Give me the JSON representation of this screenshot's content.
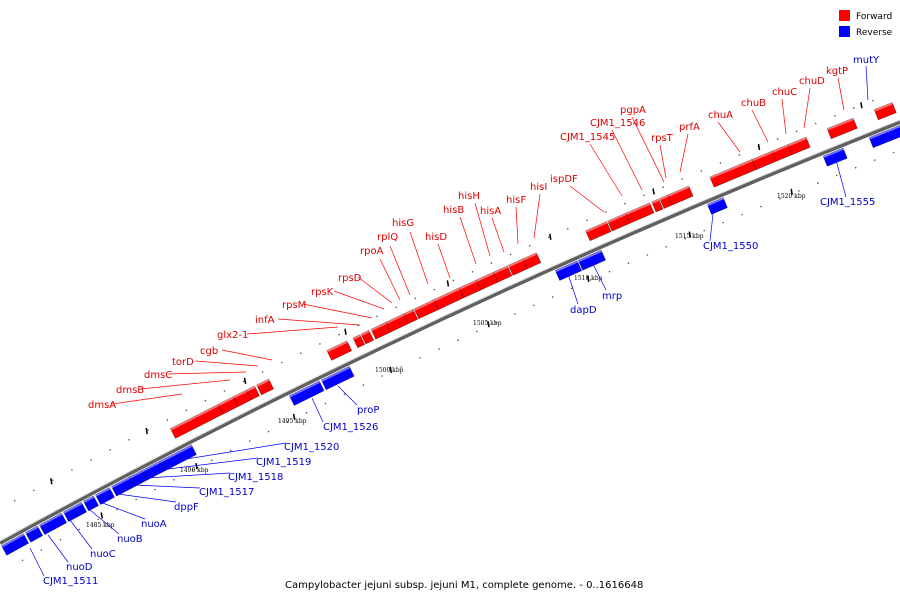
{
  "caption": "Campylobacter jejuni subsp. jejuni M1, complete genome. - 0..1616648",
  "legend": {
    "forward_label": "Forward",
    "reverse_label": "Reverse",
    "forward_color": "#ff0000",
    "reverse_color": "#0000ff"
  },
  "kbp_labels": [
    "1485 kbp",
    "1490 kbp",
    "1495 kbp",
    "1500 kbp",
    "1505 kbp",
    "1510 kbp",
    "1515 kbp",
    "1520 kbp"
  ],
  "forward_genes": [
    "dmsA",
    "dmsB",
    "dmsC",
    "torD",
    "cgb",
    "glx2-1",
    "infA",
    "rpsM",
    "rpsK",
    "rpsD",
    "rpoA",
    "rplQ",
    "hisG",
    "hisD",
    "hisB",
    "hisH",
    "hisA",
    "hisF",
    "hisI",
    "ispDF",
    "CJM1_1545",
    "CJM1_1546",
    "pgpA",
    "rpsT",
    "prfA",
    "chuA",
    "chuB",
    "chuC",
    "chuD",
    "kgtP"
  ],
  "reverse_genes": [
    "CJM1_1511",
    "nuoD",
    "nuoC",
    "nuoB",
    "nuoA",
    "dppF",
    "CJM1_1517",
    "CJM1_1518",
    "CJM1_1519",
    "CJM1_1520",
    "CJM1_1526",
    "proP",
    "dapD",
    "mrp",
    "CJM1_1550",
    "CJM1_1555",
    "mutY"
  ]
}
